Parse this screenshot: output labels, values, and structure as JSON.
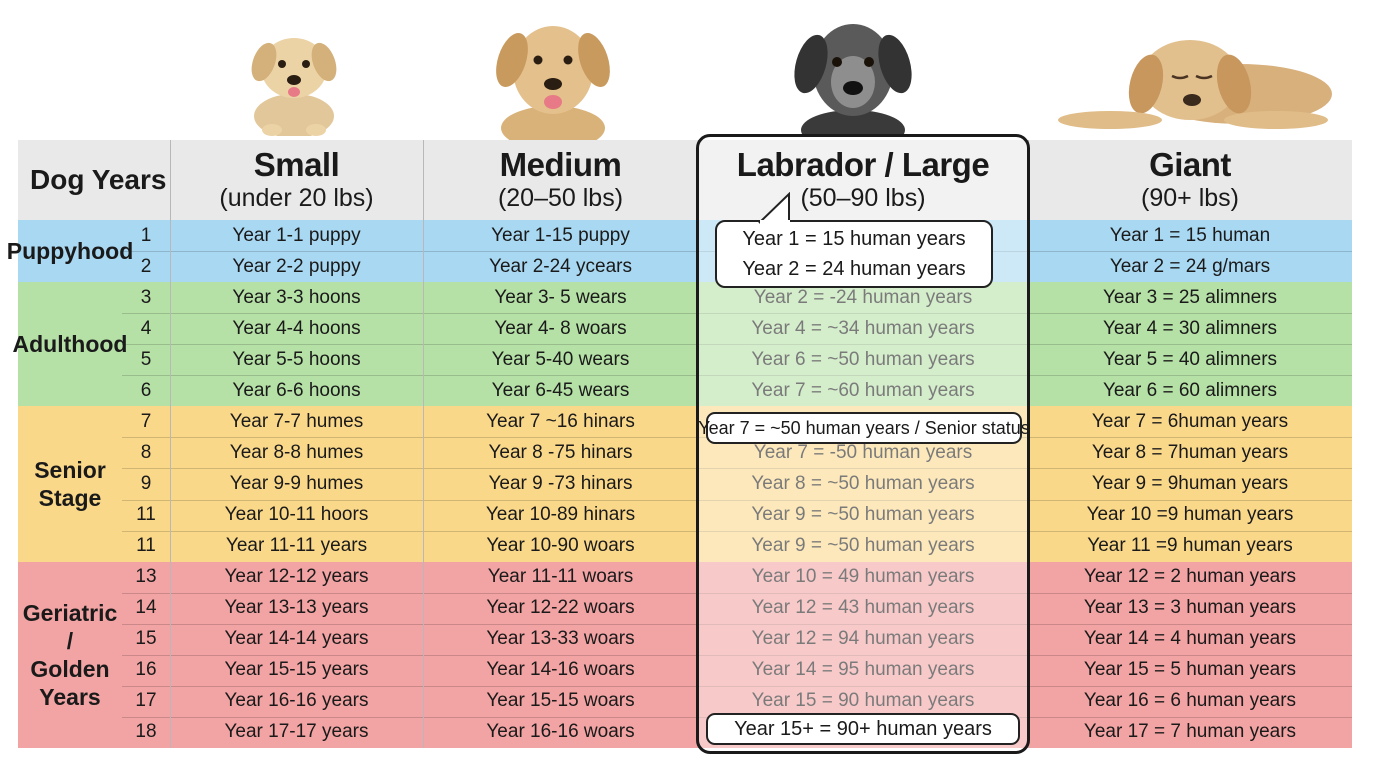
{
  "header": {
    "dog_years": "Dog Years",
    "columns": [
      {
        "title": "Small",
        "subtitle": "(under 20 lbs)"
      },
      {
        "title": "Medium",
        "subtitle": "(20–50 lbs)"
      },
      {
        "title": "Labrador / Large",
        "subtitle": "(50–90 lbs)"
      },
      {
        "title": "Giant",
        "subtitle": "(90+ lbs)"
      }
    ]
  },
  "photos": [
    "small-puppy-photo",
    "medium-dog-photo",
    "senior-labrador-photo",
    "giant-dog-lying-photo"
  ],
  "colors": {
    "header": "#e9e9e9",
    "puppyhood": "#a9d8f2",
    "adulthood": "#b5e0a6",
    "senior": "#fad88a",
    "geriatric": "#f2a3a3"
  },
  "sections": [
    {
      "label": "Puppyhood",
      "color": "#a9d8f2",
      "rows": [
        {
          "year": "1",
          "small": "Year 1-1 puppy",
          "medium": "Year 1-15 puppy",
          "large": "",
          "giant": "Year 1 = 15 human"
        },
        {
          "year": "2",
          "small": "Year 2-2 puppy",
          "medium": "Year 2-24 ycears",
          "large": "",
          "giant": "Year 2 = 24 g/mars"
        }
      ]
    },
    {
      "label": "Adulthood",
      "color": "#b5e0a6",
      "rows": [
        {
          "year": "3",
          "small": "Year 3-3 hoons",
          "medium": "Year 3-  5 wears",
          "large": "Year 2 = -24 human years",
          "giant": "Year 3 = 25 alimners"
        },
        {
          "year": "4",
          "small": "Year 4-4 hoons",
          "medium": "Year 4-  8 woars",
          "large": "Year 4 = ~34 human years",
          "giant": "Year 4 = 30 alimners"
        },
        {
          "year": "5",
          "small": "Year 5-5 hoons",
          "medium": "Year 5-40 wears",
          "large": "Year 6 = ~50 human years",
          "giant": "Year 5 = 40 alimners"
        },
        {
          "year": "6",
          "small": "Year 6-6 hoons",
          "medium": "Year 6-45 wears",
          "large": "Year 7 = ~60 human years",
          "giant": "Year 6 = 60 alimners"
        }
      ]
    },
    {
      "label": "Senior\nStage",
      "color": "#fad88a",
      "rows": [
        {
          "year": "7",
          "small": "Year 7-7 humes",
          "medium": "Year 7 ~16 hinars",
          "large": "",
          "giant": "Year 7 = 6human years"
        },
        {
          "year": "8",
          "small": "Year 8-8 humes",
          "medium": "Year 8 -75 hinars",
          "large": "Year 7 = -50 human years",
          "giant": "Year 8 = 7human years"
        },
        {
          "year": "9",
          "small": "Year 9-9 humes",
          "medium": "Year 9 -73 hinars",
          "large": "Year 8 = ~50 human years",
          "giant": "Year 9 = 9human years"
        },
        {
          "year": "11",
          "small": "Year 10-11 hoors",
          "medium": "Year 10-89 hinars",
          "large": "Year 9 = ~50 human years",
          "giant": "Year 10 =9 human years"
        },
        {
          "year": "11",
          "small": "Year 11-11 years",
          "medium": "Year 10-90 woars",
          "large": "Year 9 = ~50 human years",
          "giant": "Year 11 =9 human years"
        }
      ]
    },
    {
      "label": "Geriatric /\nGolden\nYears",
      "color": "#f2a3a3",
      "rows": [
        {
          "year": "13",
          "small": "Year 12-12 years",
          "medium": "Year 11-11 woars",
          "large": "Year 10 = 49 human years",
          "giant": "Year 12 = 2 human years"
        },
        {
          "year": "14",
          "small": "Year 13-13 years",
          "medium": "Year 12-22 woars",
          "large": "Year 12 = 43 human years",
          "giant": "Year 13 = 3 human years"
        },
        {
          "year": "15",
          "small": "Year 14-14 years",
          "medium": "Year 13-33 woars",
          "large": "Year 12 = 94 human years",
          "giant": "Year 14 = 4 human years"
        },
        {
          "year": "16",
          "small": "Year 15-15 years",
          "medium": "Year 14-16 woars",
          "large": "Year 14 = 95 human years",
          "giant": "Year 15 = 5 human years"
        },
        {
          "year": "17",
          "small": "Year 16-16 years",
          "medium": "Year 15-15 woars",
          "large": "Year 15 = 90 human years",
          "giant": "Year 16 = 6 human years"
        },
        {
          "year": "18",
          "small": "Year 17-17 years",
          "medium": "Year 16-16 woars",
          "large": "",
          "giant": "Year 17 = 7 human years"
        }
      ]
    }
  ],
  "callouts": {
    "puppy_line1": "Year 1 = 15 human years",
    "puppy_line2": "Year 2 = 24 human years",
    "senior": "Year 7 = ~50 human years / Senior status",
    "golden": "Year 15+ = 90+ human years"
  }
}
